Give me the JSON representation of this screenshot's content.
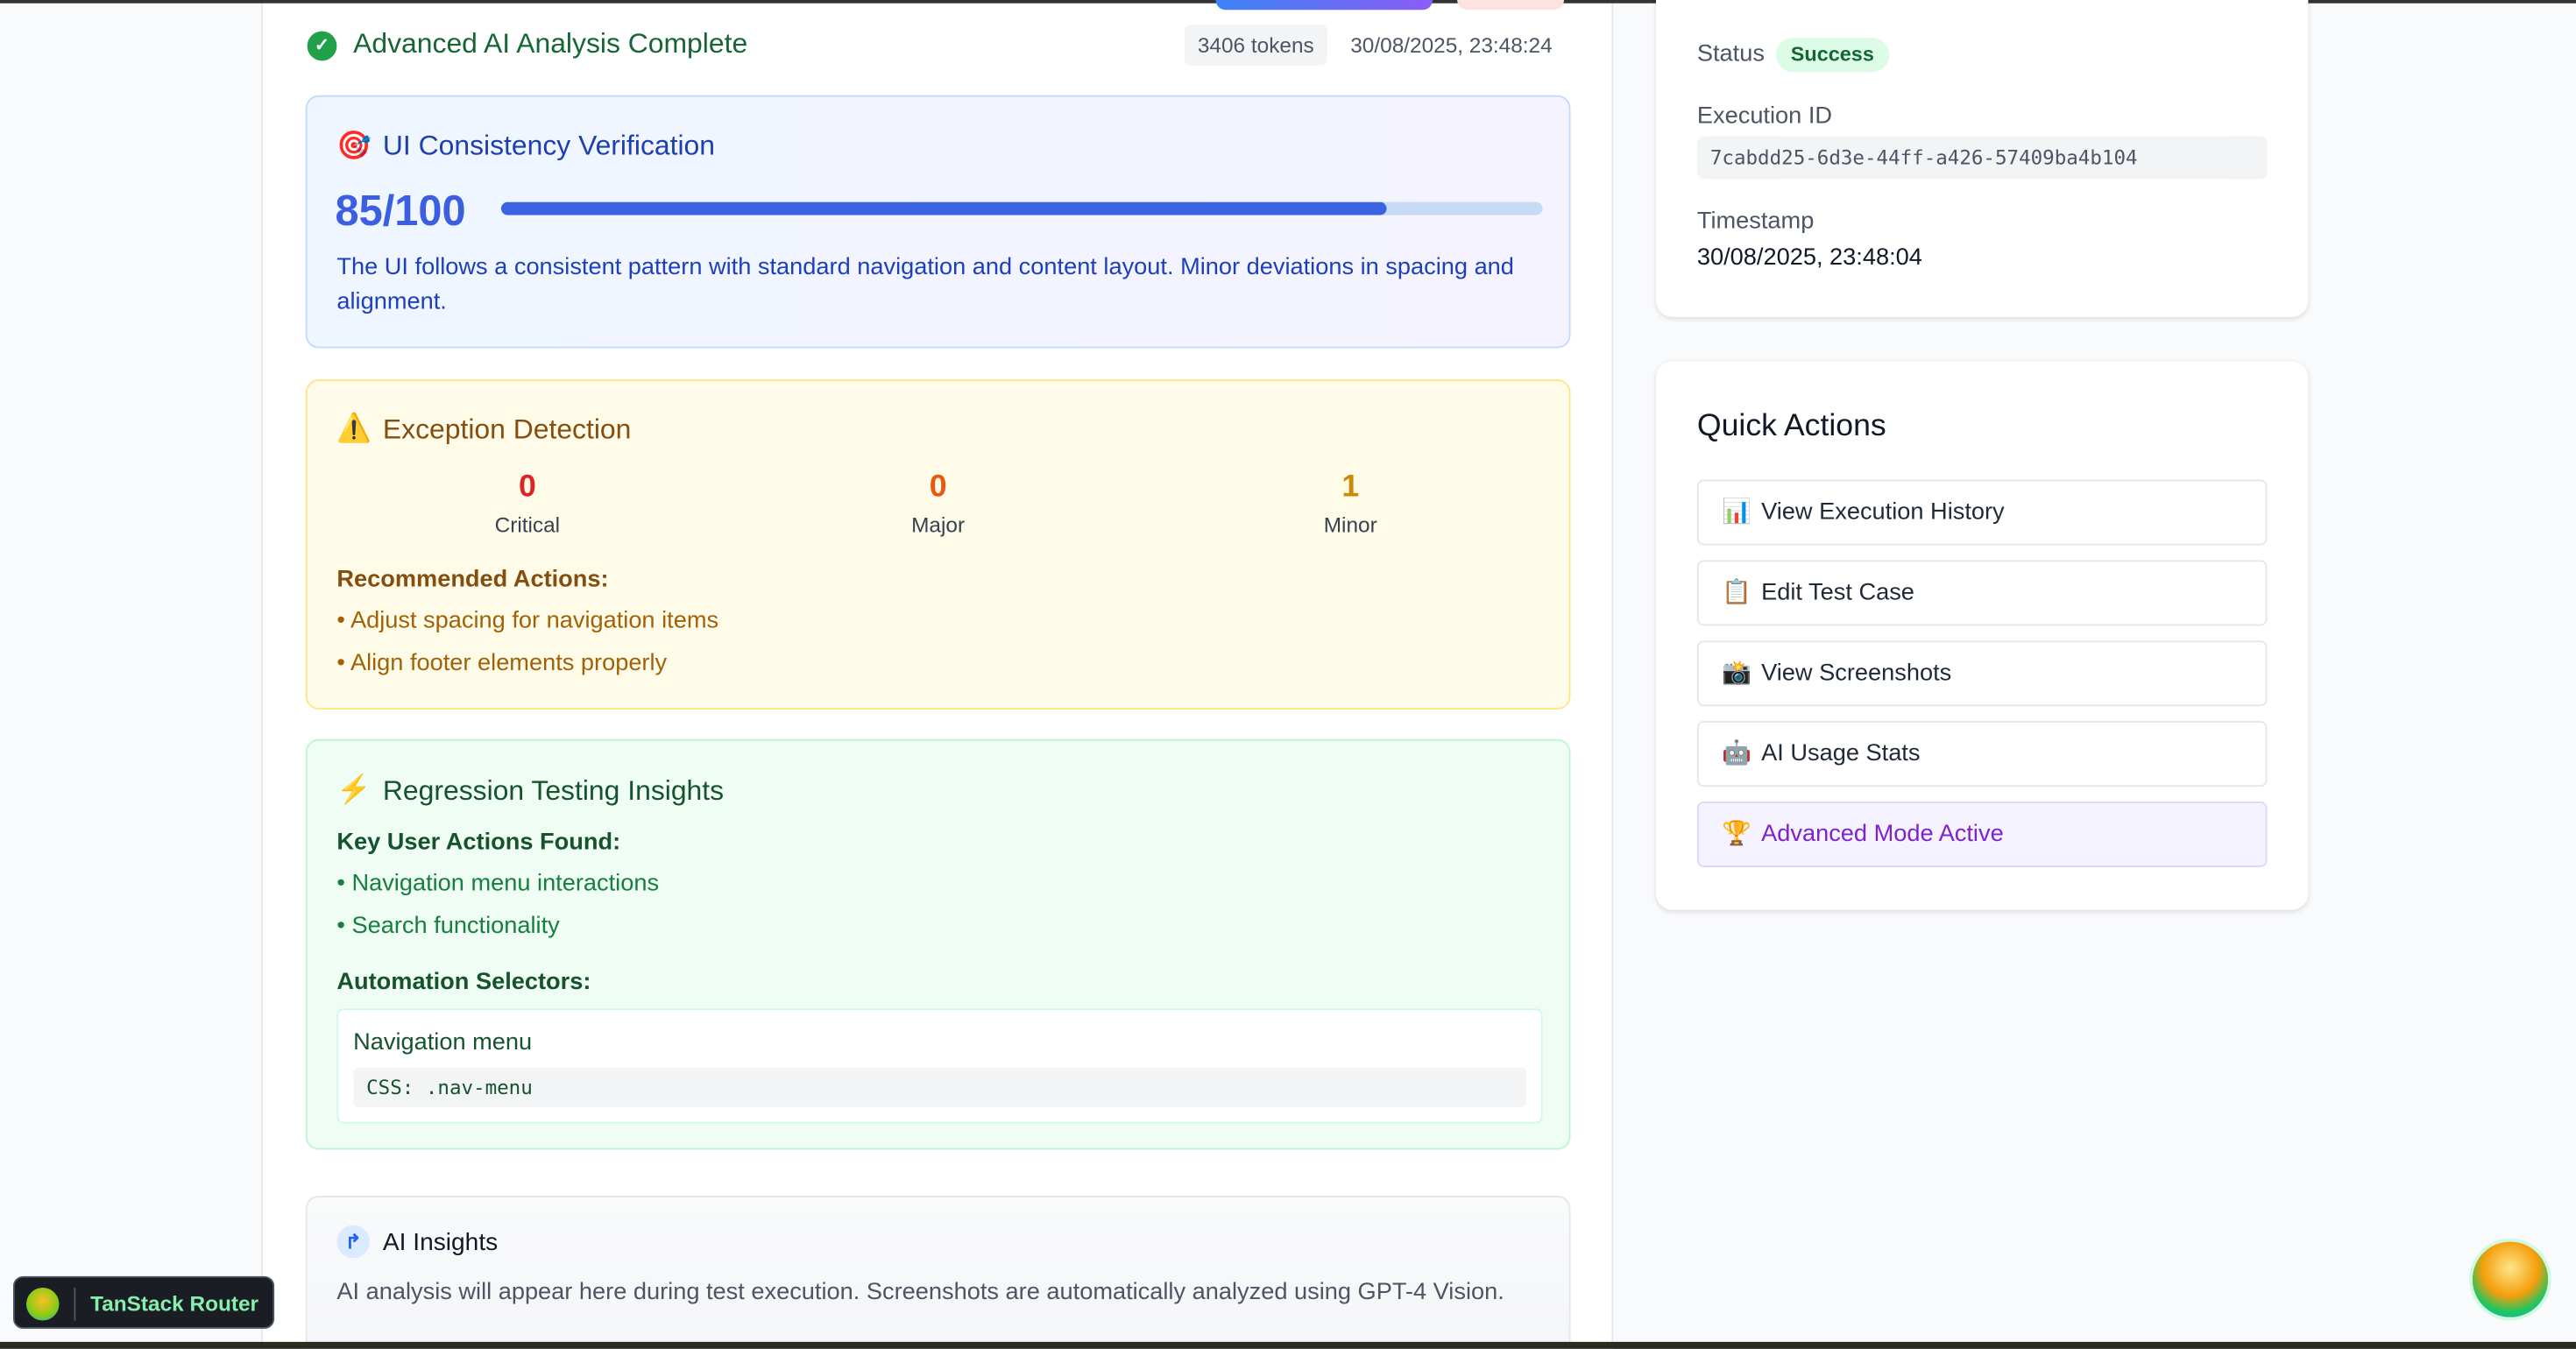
{
  "header": {
    "title": "Advanced AI Analysis Complete",
    "tokens": "3406 tokens",
    "timestamp": "30/08/2025, 23:48:24"
  },
  "ui_consistency": {
    "icon": "target-icon",
    "title": "UI Consistency Verification",
    "score_label": "85/100",
    "score": 85,
    "max": 100,
    "description": "The UI follows a consistent pattern with standard navigation and content layout. Minor deviations in spacing and alignment."
  },
  "exceptions": {
    "icon": "warning-icon",
    "title": "Exception Detection",
    "stats": [
      {
        "value": "0",
        "label": "Critical",
        "color": "#dc2626"
      },
      {
        "value": "0",
        "label": "Major",
        "color": "#ea580c"
      },
      {
        "value": "1",
        "label": "Minor",
        "color": "#ca8a04"
      }
    ],
    "recommended_title": "Recommended Actions:",
    "actions": [
      "• Adjust spacing for navigation items",
      "• Align footer elements properly"
    ]
  },
  "regression": {
    "icon": "lightning-icon",
    "title": "Regression Testing Insights",
    "key_actions_title": "Key User Actions Found:",
    "key_actions": [
      "• Navigation menu interactions",
      "• Search functionality"
    ],
    "selectors_title": "Automation Selectors:",
    "selector": {
      "name": "Navigation menu",
      "css": "CSS: .nav-menu"
    }
  },
  "ai_insights": {
    "title": "AI Insights",
    "text": "AI analysis will appear here during test execution. Screenshots are automatically analyzed using GPT-4 Vision."
  },
  "details": {
    "status_label": "Status",
    "status": "Success",
    "execution_id_label": "Execution ID",
    "execution_id": "7cabdd25-6d3e-44ff-a426-57409ba4b104",
    "timestamp_label": "Timestamp",
    "timestamp": "30/08/2025, 23:48:04"
  },
  "quick_actions": {
    "title": "Quick Actions",
    "items": [
      {
        "emoji": "📊",
        "label": "View Execution History"
      },
      {
        "emoji": "📋",
        "label": "Edit Test Case"
      },
      {
        "emoji": "📸",
        "label": "View Screenshots"
      },
      {
        "emoji": "🤖",
        "label": "AI Usage Stats"
      },
      {
        "emoji": "🏆",
        "label": "Advanced Mode Active"
      }
    ]
  },
  "devtools": {
    "label": "TanStack Router"
  },
  "colors": {
    "success": "#22a04a",
    "primary": "#3b62e0",
    "advanced": "#7e22ce"
  }
}
